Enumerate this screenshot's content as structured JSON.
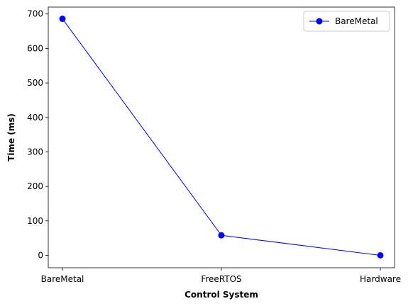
{
  "chart_data": {
    "type": "line",
    "categories": [
      "BareMetal",
      "FreeRTOS",
      "Hardware"
    ],
    "series": [
      {
        "name": "BareMetal",
        "values": [
          686,
          58,
          0
        ],
        "color": "#0000ff",
        "marker": "circle"
      }
    ],
    "xlabel": "Control System",
    "ylabel": "Time (ms)",
    "ylim": [
      -36,
      720
    ],
    "yticks": [
      0,
      100,
      200,
      300,
      400,
      500,
      600,
      700
    ],
    "grid": false,
    "legend": "top-right"
  }
}
